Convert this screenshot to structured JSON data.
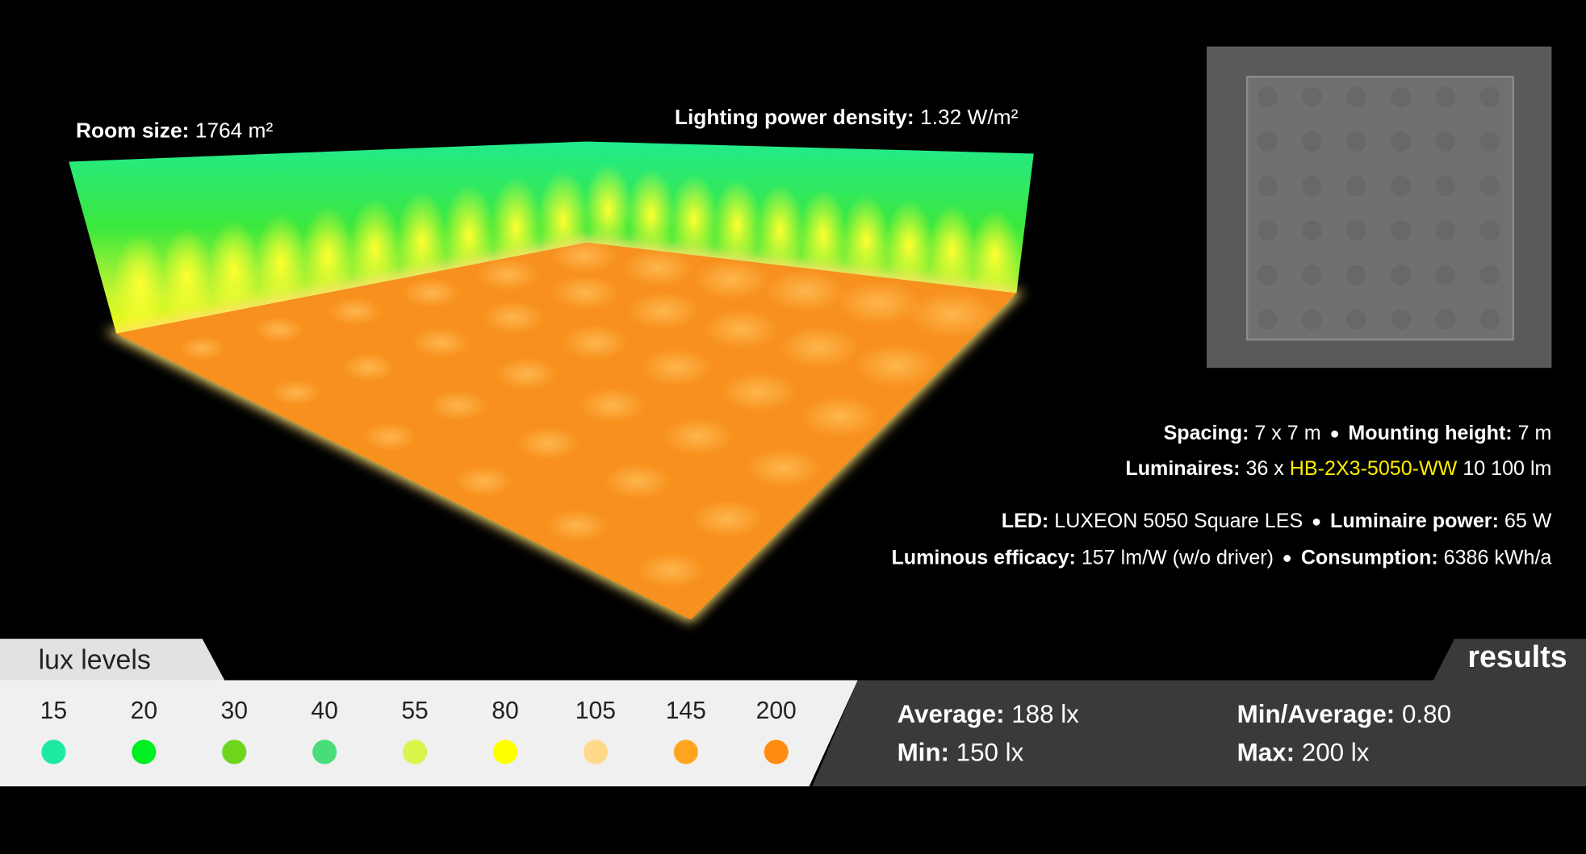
{
  "room_size": {
    "label": "Room size:",
    "value": "1764 m²"
  },
  "power_density": {
    "label": "Lighting power density:",
    "value": "1.32 W/m²"
  },
  "specs": {
    "spacing": {
      "label": "Spacing:",
      "value": "7 x 7 m"
    },
    "mounting_height": {
      "label": "Mounting height:",
      "value": "7 m"
    },
    "luminaires": {
      "label": "Luminaires:",
      "count": "36 x",
      "model": "HB-2X3-5050-WW",
      "flux": "10 100 lm"
    },
    "led": {
      "label": "LED:",
      "value": "LUXEON 5050 Square LES"
    },
    "luminaire_power": {
      "label": "Luminaire power:",
      "value": "65 W"
    },
    "efficacy": {
      "label": "Luminous efficacy:",
      "value": "157 lm/W (w/o driver)"
    },
    "consumption": {
      "label": "Consumption:",
      "value": "6386 kWh/a"
    }
  },
  "legend": {
    "title": "lux levels",
    "levels": [
      {
        "label": "15",
        "color": "#1de9a0"
      },
      {
        "label": "20",
        "color": "#00ee22"
      },
      {
        "label": "30",
        "color": "#6ed61a"
      },
      {
        "label": "40",
        "color": "#48dc7a"
      },
      {
        "label": "55",
        "color": "#d8f54a"
      },
      {
        "label": "80",
        "color": "#ffff00"
      },
      {
        "label": "105",
        "color": "#ffd98a"
      },
      {
        "label": "145",
        "color": "#ffa620"
      },
      {
        "label": "200",
        "color": "#ff8a10"
      }
    ]
  },
  "results": {
    "title": "results",
    "items": [
      {
        "label": "Average:",
        "value": "188 lx"
      },
      {
        "label": "Min:",
        "value": "150 lx"
      },
      {
        "label": "Min/Average:",
        "value": "0.80"
      },
      {
        "label": "Max:",
        "value": "200 lx"
      }
    ]
  }
}
